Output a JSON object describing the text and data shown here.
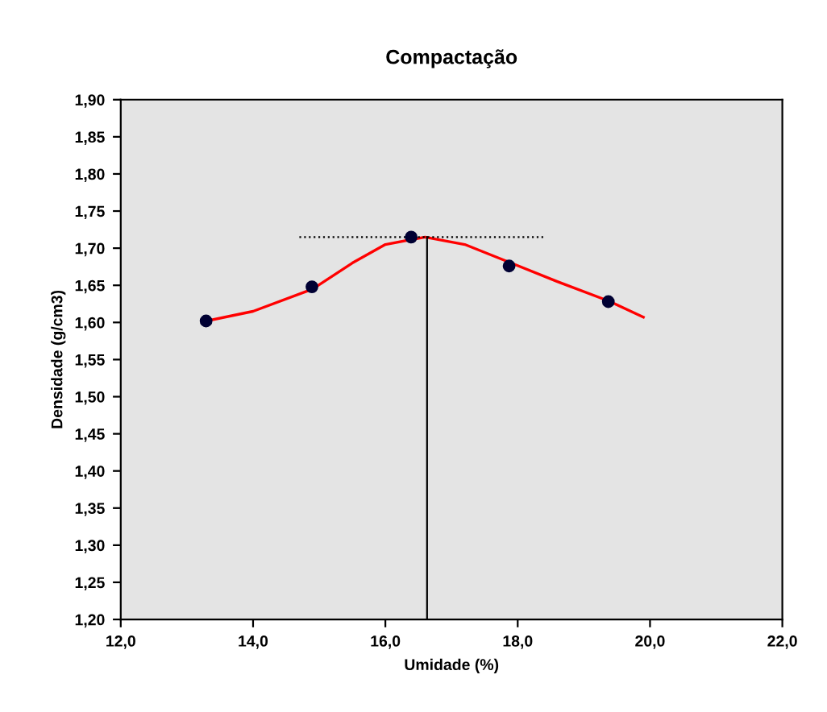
{
  "chart_data": {
    "type": "scatter",
    "title": "Compactação",
    "xlabel": "Umidade (%)",
    "ylabel": "Densidade (g/cm3)",
    "xlim": [
      12,
      22
    ],
    "xticks": [
      {
        "value": 12,
        "label": "12,0"
      },
      {
        "value": 14,
        "label": "14,0"
      },
      {
        "value": 16,
        "label": "16,0"
      },
      {
        "value": 18,
        "label": "18,0"
      },
      {
        "value": 20,
        "label": "20,0"
      },
      {
        "value": 22,
        "label": "22,0"
      }
    ],
    "ylim": [
      1.2,
      1.9
    ],
    "yticks": [
      {
        "value": 1.2,
        "label": "1,20"
      },
      {
        "value": 1.25,
        "label": "1,25"
      },
      {
        "value": 1.3,
        "label": "1,30"
      },
      {
        "value": 1.35,
        "label": "1,35"
      },
      {
        "value": 1.4,
        "label": "1,40"
      },
      {
        "value": 1.45,
        "label": "1,45"
      },
      {
        "value": 1.5,
        "label": "1,50"
      },
      {
        "value": 1.55,
        "label": "1,55"
      },
      {
        "value": 1.6,
        "label": "1,60"
      },
      {
        "value": 1.65,
        "label": "1,65"
      },
      {
        "value": 1.7,
        "label": "1,70"
      },
      {
        "value": 1.75,
        "label": "1,75"
      },
      {
        "value": 1.8,
        "label": "1,80"
      },
      {
        "value": 1.85,
        "label": "1,85"
      },
      {
        "value": 1.9,
        "label": "1,90"
      }
    ],
    "grid": false,
    "legend": false,
    "series": [
      {
        "type": "line",
        "color": "#ff0000",
        "line_style": "solid",
        "marker": "none",
        "x": [
          13.3,
          14.0,
          14.9,
          15.5,
          16.0,
          16.6,
          17.2,
          17.9,
          18.6,
          19.4,
          19.9
        ],
        "values": [
          1.602,
          1.615,
          1.645,
          1.68,
          1.705,
          1.715,
          1.705,
          1.68,
          1.655,
          1.628,
          1.607
        ]
      },
      {
        "type": "line",
        "color": "#000000",
        "line_style": "dotted",
        "marker": "none",
        "x": [
          14.7,
          18.4
        ],
        "values": [
          1.715,
          1.715
        ]
      },
      {
        "type": "line",
        "color": "#000000",
        "line_style": "solid",
        "marker": "none",
        "x": [
          16.63,
          16.63
        ],
        "values": [
          1.2,
          1.715
        ]
      },
      {
        "color": "#000033",
        "marker": "circle",
        "x": [
          13.29,
          14.89,
          16.39,
          17.87,
          19.37
        ],
        "values": [
          1.602,
          1.648,
          1.715,
          1.676,
          1.628
        ]
      }
    ]
  }
}
